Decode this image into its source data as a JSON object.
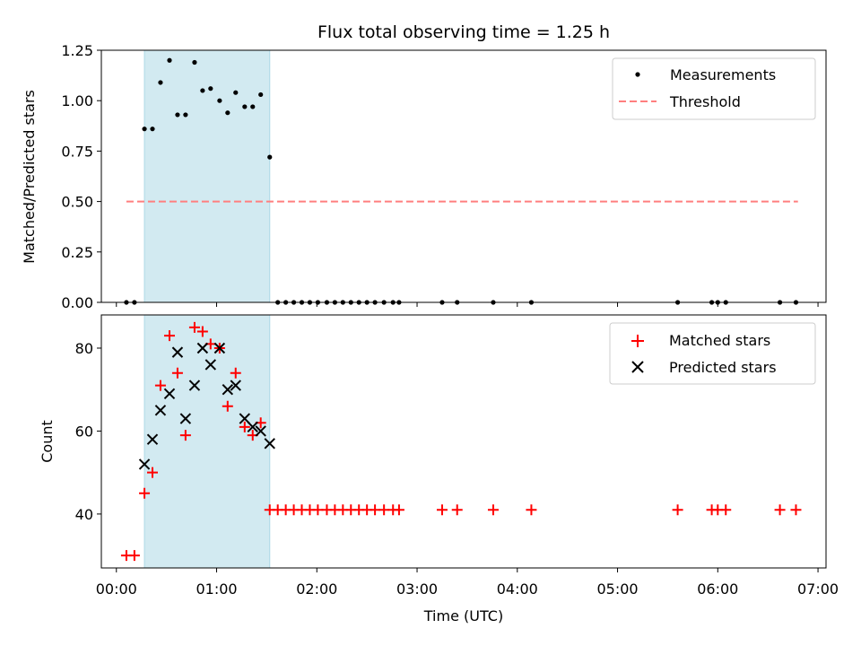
{
  "chart_data": [
    {
      "type": "scatter",
      "title": "Flux total observing time = 1.25 h",
      "ylabel": "Matched/Predicted stars",
      "xlim": [
        -0.15,
        7.08
      ],
      "ylim": [
        0,
        1.25
      ],
      "xticks": [
        0,
        1,
        2,
        3,
        4,
        5,
        6,
        7
      ],
      "yticks": [
        0,
        0.25,
        0.5,
        0.75,
        1.0,
        1.25
      ],
      "ytick_labels": [
        "0.00",
        "0.25",
        "0.50",
        "0.75",
        "1.00",
        "1.25"
      ],
      "shaded_span": [
        0.28,
        1.53
      ],
      "legend_position": "top-right",
      "legend": [
        "Measurements",
        "Threshold"
      ],
      "colors": {
        "measurements": "#000000",
        "threshold": "#ff7f7f",
        "span": "#add8e6"
      },
      "threshold": {
        "value": 0.5,
        "x_range": [
          0.1,
          6.8
        ]
      },
      "series": [
        {
          "name": "Measurements",
          "x": [
            0.1,
            0.18,
            0.28,
            0.36,
            0.44,
            0.53,
            0.61,
            0.69,
            0.78,
            0.86,
            0.94,
            1.03,
            1.11,
            1.19,
            1.28,
            1.36,
            1.44,
            1.53,
            1.61,
            1.69,
            1.77,
            1.85,
            1.93,
            2.01,
            2.1,
            2.18,
            2.26,
            2.34,
            2.42,
            2.5,
            2.58,
            2.67,
            2.76,
            2.82,
            3.25,
            3.4,
            3.76,
            4.14,
            5.6,
            5.94,
            6.0,
            6.08,
            6.62,
            6.78
          ],
          "y": [
            0,
            0,
            0.86,
            0.86,
            1.09,
            1.2,
            0.93,
            0.93,
            1.19,
            1.05,
            1.06,
            1.0,
            0.94,
            1.04,
            0.97,
            0.97,
            1.03,
            0.72,
            0,
            0,
            0,
            0,
            0,
            0,
            0,
            0,
            0,
            0,
            0,
            0,
            0,
            0,
            0,
            0,
            0,
            0,
            0,
            0,
            0,
            0,
            0,
            0,
            0,
            0
          ]
        }
      ]
    },
    {
      "type": "scatter",
      "xlabel": "Time (UTC)",
      "ylabel": "Count",
      "xlim": [
        -0.15,
        7.08
      ],
      "ylim": [
        27,
        88
      ],
      "xticks": [
        0,
        1,
        2,
        3,
        4,
        5,
        6,
        7
      ],
      "xtick_labels": [
        "00:00",
        "01:00",
        "02:00",
        "03:00",
        "04:00",
        "05:00",
        "06:00",
        "07:00"
      ],
      "yticks": [
        40,
        60,
        80
      ],
      "shaded_span": [
        0.28,
        1.53
      ],
      "legend_position": "top-right",
      "legend": [
        "Matched stars",
        "Predicted stars"
      ],
      "colors": {
        "matched": "#ff0000",
        "predicted": "#000000",
        "span": "#add8e6"
      },
      "series": [
        {
          "name": "Matched stars",
          "x": [
            0.1,
            0.18,
            0.28,
            0.36,
            0.44,
            0.53,
            0.61,
            0.69,
            0.78,
            0.86,
            0.94,
            1.03,
            1.11,
            1.19,
            1.28,
            1.36,
            1.44,
            1.53,
            1.61,
            1.69,
            1.77,
            1.85,
            1.93,
            2.01,
            2.1,
            2.18,
            2.26,
            2.34,
            2.42,
            2.5,
            2.58,
            2.67,
            2.76,
            2.82,
            3.25,
            3.4,
            3.76,
            4.14,
            5.6,
            5.94,
            6.0,
            6.08,
            6.62,
            6.78
          ],
          "y": [
            30,
            30,
            45,
            50,
            71,
            83,
            74,
            59,
            85,
            84,
            81,
            80,
            66,
            74,
            61,
            59,
            62,
            41,
            41,
            41,
            41,
            41,
            41,
            41,
            41,
            41,
            41,
            41,
            41,
            41,
            41,
            41,
            41,
            41,
            41,
            41,
            41,
            41,
            41,
            41,
            41,
            41,
            41,
            41
          ]
        },
        {
          "name": "Predicted stars",
          "x": [
            0.28,
            0.36,
            0.44,
            0.53,
            0.61,
            0.69,
            0.78,
            0.86,
            0.94,
            1.03,
            1.11,
            1.19,
            1.28,
            1.36,
            1.44,
            1.53
          ],
          "y": [
            52,
            58,
            65,
            69,
            79,
            63,
            71,
            80,
            76,
            80,
            70,
            71,
            63,
            61,
            60,
            57
          ]
        }
      ]
    }
  ]
}
